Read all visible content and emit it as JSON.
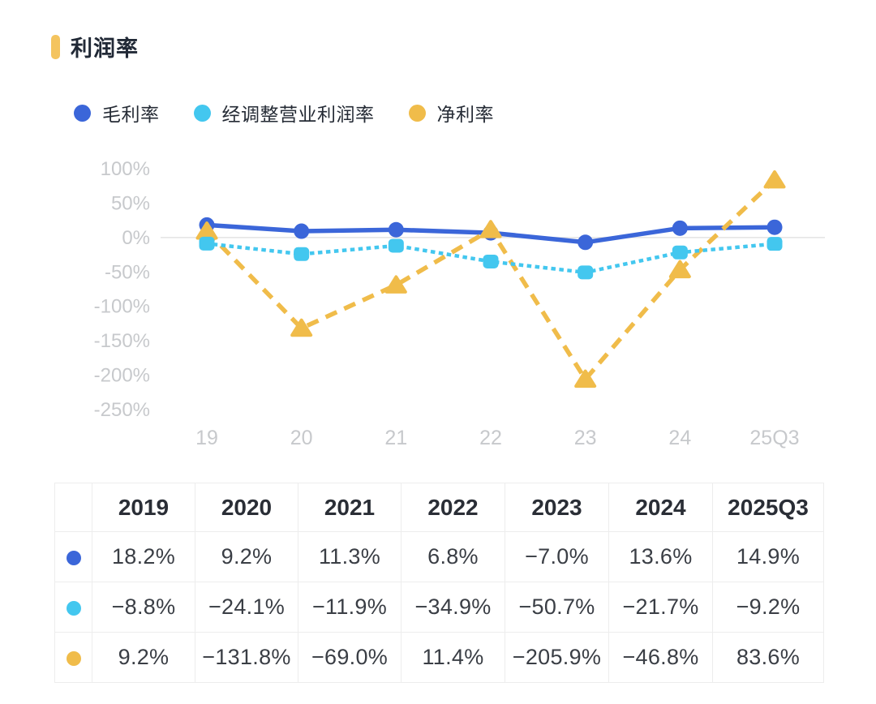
{
  "page": {
    "title": "利润率",
    "accent_color": "#F4C45F",
    "background": "#ffffff"
  },
  "legend": {
    "items": [
      {
        "label": "毛利率",
        "color": "#3B66D9"
      },
      {
        "label": "经调整营业利润率",
        "color": "#43C7EF"
      },
      {
        "label": "净利率",
        "color": "#F0BC4A"
      }
    ]
  },
  "chart_data": {
    "type": "line",
    "title": "利润率",
    "categories": [
      "19",
      "20",
      "21",
      "22",
      "23",
      "24",
      "25Q3"
    ],
    "series": [
      {
        "name": "毛利率",
        "color": "#3B66D9",
        "line_style": "solid",
        "marker": "circle",
        "values": [
          18.2,
          9.2,
          11.3,
          6.8,
          -7.0,
          13.6,
          14.9
        ]
      },
      {
        "name": "经调整营业利润率",
        "color": "#43C7EF",
        "line_style": "dotted",
        "marker": "rounded-square",
        "values": [
          -8.8,
          -24.1,
          -11.9,
          -34.9,
          -50.7,
          -21.7,
          -9.2
        ]
      },
      {
        "name": "净利率",
        "color": "#F0BC4A",
        "line_style": "dashed",
        "marker": "triangle",
        "values": [
          9.2,
          -131.8,
          -69.0,
          11.4,
          -205.9,
          -46.8,
          83.6
        ]
      }
    ],
    "yticks": [
      100,
      50,
      0,
      -50,
      -100,
      -150,
      -200,
      -250
    ],
    "ytick_suffix": "%",
    "ylim": [
      -250,
      100
    ],
    "grid": "zero-line-only",
    "grid_color": "#e3e3e3",
    "axis_label_color": "#c7c9cc",
    "legend_position": "top"
  },
  "table": {
    "columns": [
      "",
      "2019",
      "2020",
      "2021",
      "2022",
      "2023",
      "2024",
      "2025Q3"
    ],
    "rows": [
      {
        "series": "毛利率",
        "color": "#3B66D9",
        "values": [
          "18.2%",
          "9.2%",
          "11.3%",
          "6.8%",
          "−7.0%",
          "13.6%",
          "14.9%"
        ]
      },
      {
        "series": "经调整营业利润率",
        "color": "#43C7EF",
        "values": [
          "−8.8%",
          "−24.1%",
          "−11.9%",
          "−34.9%",
          "−50.7%",
          "−21.7%",
          "−9.2%"
        ]
      },
      {
        "series": "净利率",
        "color": "#F0BC4A",
        "values": [
          "9.2%",
          "−131.8%",
          "−69.0%",
          "11.4%",
          "−205.9%",
          "−46.8%",
          "83.6%"
        ]
      }
    ]
  }
}
